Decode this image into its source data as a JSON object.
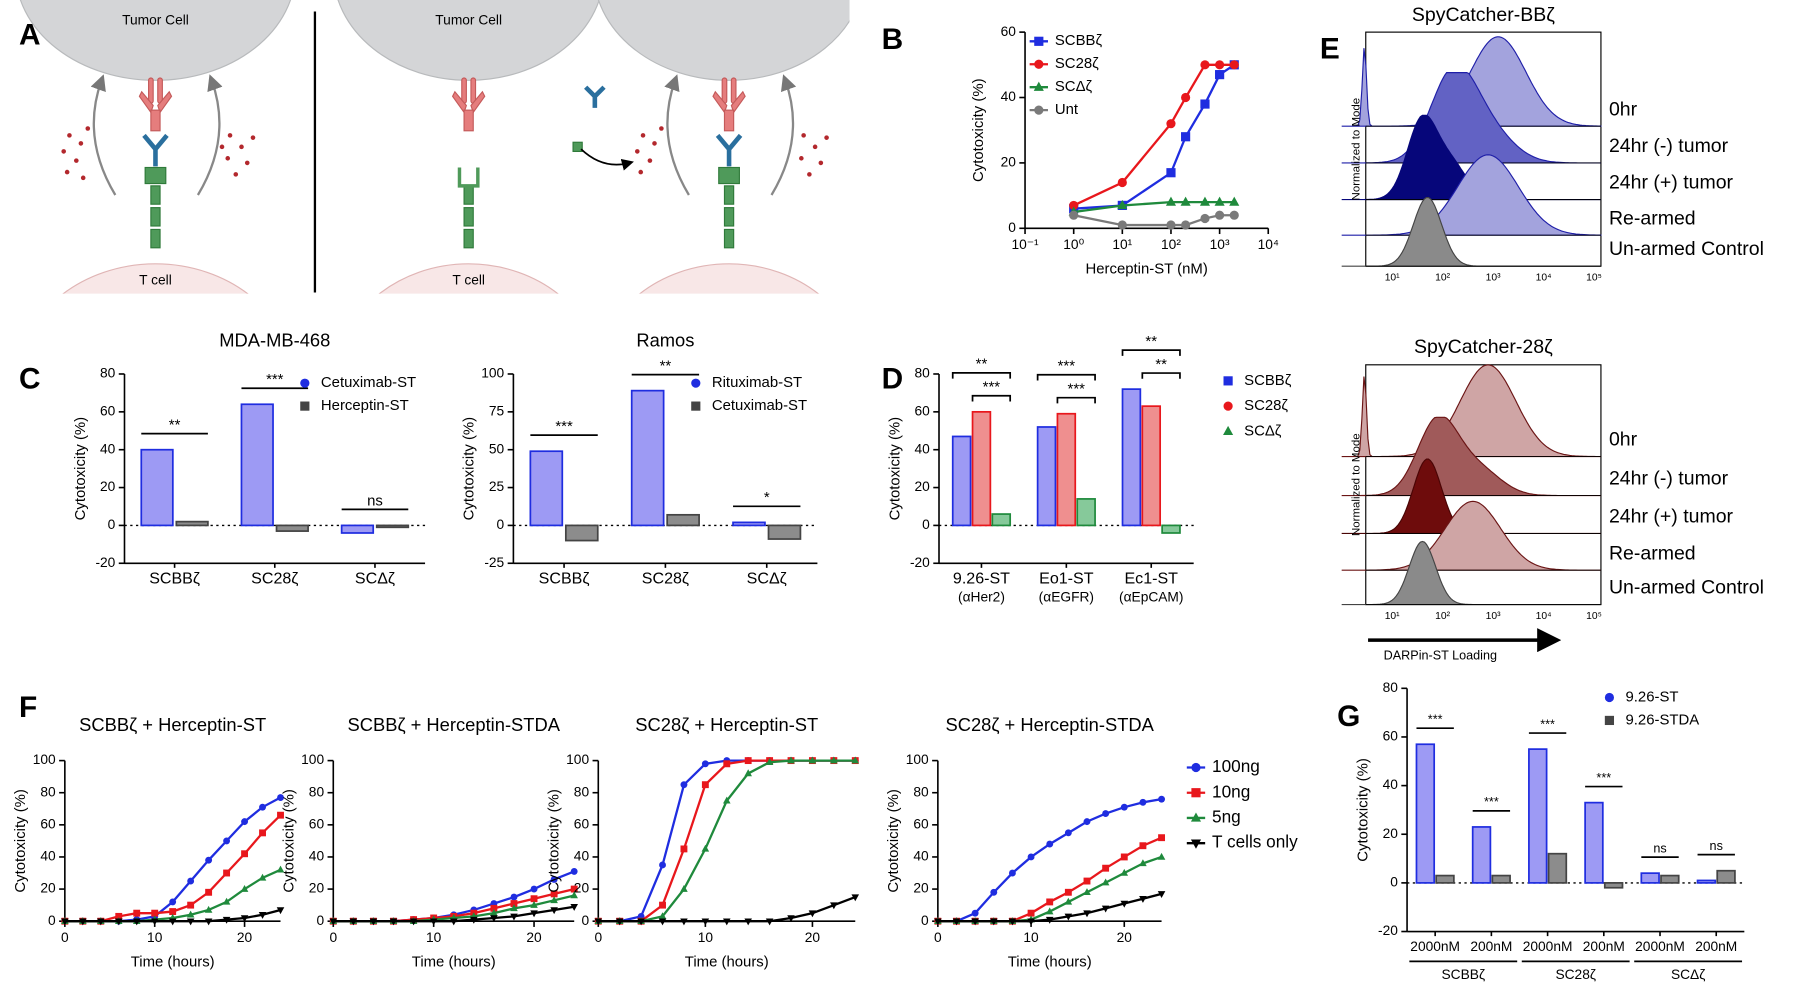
{
  "panel_letters": [
    "A",
    "B",
    "C",
    "D",
    "E",
    "F",
    "G"
  ],
  "diagram": {
    "tumor_cell": "Tumor Cell",
    "t_cell": "T cell"
  },
  "histograms": {
    "titles": [
      "SpyCatcher-BBζ",
      "SpyCatcher-28ζ"
    ],
    "row_labels": [
      "0hr",
      "24hr (-) tumor",
      "24hr (+) tumor",
      "Re-armed",
      "Un-armed Control"
    ],
    "ylabel": "Normalized to Mode",
    "xlabel": "DARPin-ST Loading",
    "tick_labels": [
      "10¹",
      "10²",
      "10³",
      "10⁴",
      "10⁵"
    ]
  },
  "chart_data": [
    {
      "type": "line",
      "xscale": "log",
      "xlabel": "Herceptin-ST (nM)",
      "ylabel": "Cytotoxicity (%)",
      "x": [
        1,
        10,
        100,
        200,
        500,
        1000,
        2000
      ],
      "xlim": [
        0.1,
        10000
      ],
      "xticks": [
        {
          "value": 0.1,
          "label": "10⁻¹"
        },
        {
          "value": 1,
          "label": "10⁰"
        },
        {
          "value": 10,
          "label": "10¹"
        },
        {
          "value": 100,
          "label": "10²"
        },
        {
          "value": 1000,
          "label": "10³"
        },
        {
          "value": 10000,
          "label": "10⁴"
        }
      ],
      "ylim": [
        0,
        60
      ],
      "yticks": [
        0,
        20,
        40,
        60
      ],
      "legend": "upper left",
      "series": [
        {
          "name": "SCBBζ",
          "color": "#1f2de0",
          "marker": "square",
          "values": [
            6,
            7,
            17,
            28,
            38,
            47,
            50
          ]
        },
        {
          "name": "SC28ζ",
          "color": "#e8171c",
          "marker": "circle",
          "values": [
            7,
            14,
            32,
            40,
            50,
            50,
            50
          ]
        },
        {
          "name": "SCΔζ",
          "color": "#1f8a3c",
          "marker": "triangle",
          "values": [
            5,
            7,
            8,
            8,
            8,
            8,
            8
          ]
        },
        {
          "name": "Unt",
          "color": "#7a7a7a",
          "marker": "circle",
          "values": [
            4,
            1,
            1,
            1,
            3,
            4,
            4
          ]
        }
      ]
    },
    {
      "type": "bar",
      "title": "MDA-MB-468",
      "ylabel": "Cytotoxicity (%)",
      "categories": [
        "SCBBζ",
        "SC28ζ",
        "SCΔζ"
      ],
      "ylim": [
        -20,
        80
      ],
      "yticks": [
        -20,
        0,
        20,
        40,
        60,
        80
      ],
      "legend": "upper right",
      "series": [
        {
          "name": "Cetuximab-ST",
          "color": "#1f2de0",
          "fill_color": "#9d9af4",
          "marker": "circle",
          "values": [
            40,
            64,
            -4
          ]
        },
        {
          "name": "Herceptin-ST",
          "color": "#444444",
          "fill_color": "#8c8c8c",
          "marker": "square",
          "values": [
            2,
            -3,
            -1
          ]
        }
      ],
      "annotations": [
        [
          "**"
        ],
        [
          "***"
        ],
        [
          "ns"
        ]
      ]
    },
    {
      "type": "bar",
      "title": "Ramos",
      "ylabel": "Cytotoxicity (%)",
      "categories": [
        "SCBBζ",
        "SC28ζ",
        "SCΔζ"
      ],
      "ylim": [
        -25,
        100
      ],
      "yticks": [
        -25,
        0,
        25,
        50,
        75,
        100
      ],
      "legend": "upper right",
      "series": [
        {
          "name": "Rituximab-ST",
          "color": "#1f2de0",
          "fill_color": "#9d9af4",
          "marker": "circle",
          "values": [
            49,
            89,
            2
          ]
        },
        {
          "name": "Cetuximab-ST",
          "color": "#444444",
          "fill_color": "#8c8c8c",
          "marker": "square",
          "values": [
            -10,
            7,
            -9
          ]
        }
      ],
      "annotations": [
        [
          "***"
        ],
        [
          "**"
        ],
        [
          "*"
        ]
      ]
    },
    {
      "type": "bar",
      "ylabel": "Cytotoxicity (%)",
      "categories": [
        "9.26-ST",
        "Eo1-ST",
        "Ec1-ST"
      ],
      "category_sublabels": [
        "(αHer2)",
        "(αEGFR)",
        "(αEpCAM)"
      ],
      "ylim": [
        -20,
        80
      ],
      "yticks": [
        -20,
        0,
        20,
        40,
        60,
        80
      ],
      "legend": "right",
      "series": [
        {
          "name": "SCBBζ",
          "color": "#1f2de0",
          "fill_color": "#9d9af4",
          "marker": "square",
          "values": [
            47,
            52,
            72
          ]
        },
        {
          "name": "SC28ζ",
          "color": "#e8171c",
          "fill_color": "#ef8f8f",
          "marker": "circle",
          "values": [
            60,
            59,
            63
          ]
        },
        {
          "name": "SCΔζ",
          "color": "#1f8a3c",
          "fill_color": "#86c99a",
          "marker": "triangle",
          "values": [
            6,
            14,
            -4
          ]
        }
      ],
      "annotations": [
        [
          "**",
          "***"
        ],
        [
          "***",
          "***"
        ],
        [
          "**",
          "**"
        ]
      ]
    },
    {
      "type": "line",
      "title": "SCBBζ + Herceptin-ST",
      "xlabel": "Time (hours)",
      "ylabel": "Cytotoxicity (%)",
      "x": [
        0,
        2,
        4,
        6,
        8,
        10,
        12,
        14,
        16,
        18,
        20,
        22,
        24
      ],
      "xlim": [
        0,
        24
      ],
      "xticks": [
        0,
        10,
        20
      ],
      "ylim": [
        0,
        100
      ],
      "yticks": [
        0,
        20,
        40,
        60,
        80,
        100
      ],
      "series": [
        {
          "color": "#1f2de0",
          "marker": "circle",
          "values": [
            0,
            0,
            0,
            0,
            1,
            3,
            12,
            25,
            38,
            50,
            62,
            71,
            77
          ]
        },
        {
          "color": "#e8171c",
          "marker": "square",
          "values": [
            0,
            0,
            0,
            3,
            5,
            5,
            6,
            10,
            18,
            30,
            42,
            55,
            66
          ]
        },
        {
          "color": "#1f8a3c",
          "marker": "triangle",
          "values": [
            0,
            0,
            0,
            0,
            0,
            1,
            2,
            4,
            7,
            12,
            20,
            27,
            32
          ]
        },
        {
          "color": "#000000",
          "marker": "tri-down",
          "values": [
            0,
            0,
            0,
            0,
            0,
            0,
            0,
            0,
            0,
            1,
            2,
            4,
            7
          ]
        }
      ]
    },
    {
      "type": "line",
      "title": "SCBBζ + Herceptin-STDA",
      "xlabel": "Time (hours)",
      "ylabel": "Cytotoxicity (%)",
      "x": [
        0,
        2,
        4,
        6,
        8,
        10,
        12,
        14,
        16,
        18,
        20,
        22,
        24
      ],
      "xlim": [
        0,
        24
      ],
      "xticks": [
        0,
        10,
        20
      ],
      "ylim": [
        0,
        100
      ],
      "yticks": [
        0,
        20,
        40,
        60,
        80,
        100
      ],
      "series": [
        {
          "color": "#1f2de0",
          "marker": "circle",
          "values": [
            0,
            0,
            0,
            0,
            1,
            2,
            4,
            7,
            11,
            15,
            20,
            26,
            31
          ]
        },
        {
          "color": "#e8171c",
          "marker": "square",
          "values": [
            0,
            0,
            0,
            0,
            1,
            2,
            3,
            5,
            8,
            11,
            14,
            17,
            20
          ]
        },
        {
          "color": "#1f8a3c",
          "marker": "triangle",
          "values": [
            0,
            0,
            0,
            0,
            0,
            1,
            2,
            3,
            5,
            8,
            10,
            13,
            16
          ]
        },
        {
          "color": "#000000",
          "marker": "tri-down",
          "values": [
            0,
            0,
            0,
            0,
            0,
            0,
            0,
            1,
            2,
            3,
            5,
            7,
            9
          ]
        }
      ]
    },
    {
      "type": "line",
      "title": "SC28ζ + Herceptin-ST",
      "xlabel": "Time (hours)",
      "ylabel": "Cytotoxicity (%)",
      "x": [
        0,
        2,
        4,
        6,
        8,
        10,
        12,
        14,
        16,
        18,
        20,
        22,
        24
      ],
      "xlim": [
        0,
        24
      ],
      "xticks": [
        0,
        10,
        20
      ],
      "ylim": [
        0,
        100
      ],
      "yticks": [
        0,
        20,
        40,
        60,
        80,
        100
      ],
      "series": [
        {
          "color": "#1f2de0",
          "marker": "circle",
          "values": [
            0,
            0,
            3,
            35,
            85,
            98,
            100,
            100,
            100,
            100,
            100,
            100,
            100
          ]
        },
        {
          "color": "#e8171c",
          "marker": "square",
          "values": [
            0,
            0,
            0,
            10,
            45,
            85,
            98,
            100,
            100,
            100,
            100,
            100,
            100
          ]
        },
        {
          "color": "#1f8a3c",
          "marker": "triangle",
          "values": [
            0,
            0,
            0,
            3,
            20,
            45,
            75,
            92,
            99,
            100,
            100,
            100,
            100
          ]
        },
        {
          "color": "#000000",
          "marker": "tri-down",
          "values": [
            0,
            0,
            0,
            0,
            0,
            0,
            0,
            0,
            0,
            2,
            5,
            10,
            15
          ]
        }
      ]
    },
    {
      "type": "line",
      "title": "SC28ζ + Herceptin-STDA",
      "xlabel": "Time (hours)",
      "ylabel": "Cytotoxicity (%)",
      "x": [
        0,
        2,
        4,
        6,
        8,
        10,
        12,
        14,
        16,
        18,
        20,
        22,
        24
      ],
      "xlim": [
        0,
        24
      ],
      "xticks": [
        0,
        10,
        20
      ],
      "ylim": [
        0,
        100
      ],
      "yticks": [
        0,
        20,
        40,
        60,
        80,
        100
      ],
      "legend": "right",
      "series": [
        {
          "name": "100ng",
          "color": "#1f2de0",
          "marker": "circle",
          "values": [
            0,
            0,
            5,
            18,
            30,
            40,
            48,
            55,
            62,
            67,
            71,
            74,
            76
          ]
        },
        {
          "name": "10ng",
          "color": "#e8171c",
          "marker": "square",
          "values": [
            0,
            0,
            0,
            0,
            0,
            5,
            12,
            18,
            25,
            33,
            40,
            47,
            52
          ]
        },
        {
          "name": "5ng",
          "color": "#1f8a3c",
          "marker": "triangle",
          "values": [
            0,
            0,
            0,
            0,
            0,
            1,
            6,
            12,
            18,
            24,
            30,
            36,
            40
          ]
        },
        {
          "name": "T cells only",
          "color": "#000000",
          "marker": "tri-down",
          "values": [
            0,
            0,
            0,
            0,
            0,
            0,
            1,
            3,
            5,
            8,
            11,
            14,
            17
          ]
        }
      ]
    },
    {
      "type": "bar",
      "ylabel": "Cytotoxicity (%)",
      "categories": [
        "2000nM",
        "200nM",
        "2000nM",
        "200nM",
        "2000nM",
        "200nM"
      ],
      "group_labels": [
        "SCBBζ",
        "SC28ζ",
        "SCΔζ"
      ],
      "ylim": [
        -20,
        80
      ],
      "yticks": [
        -20,
        0,
        20,
        40,
        60,
        80
      ],
      "legend": "upper right",
      "series": [
        {
          "name": "9.26-ST",
          "color": "#1f2de0",
          "fill_color": "#9d9af4",
          "marker": "circle",
          "values": [
            57,
            23,
            55,
            33,
            4,
            1
          ]
        },
        {
          "name": "9.26-STDA",
          "color": "#444444",
          "fill_color": "#8c8c8c",
          "marker": "square",
          "values": [
            3,
            3,
            12,
            -2,
            3,
            5
          ]
        }
      ],
      "annotations": [
        [
          "***"
        ],
        [
          "***"
        ],
        [
          "***"
        ],
        [
          "***"
        ],
        [
          "ns"
        ],
        [
          "ns"
        ]
      ]
    }
  ]
}
